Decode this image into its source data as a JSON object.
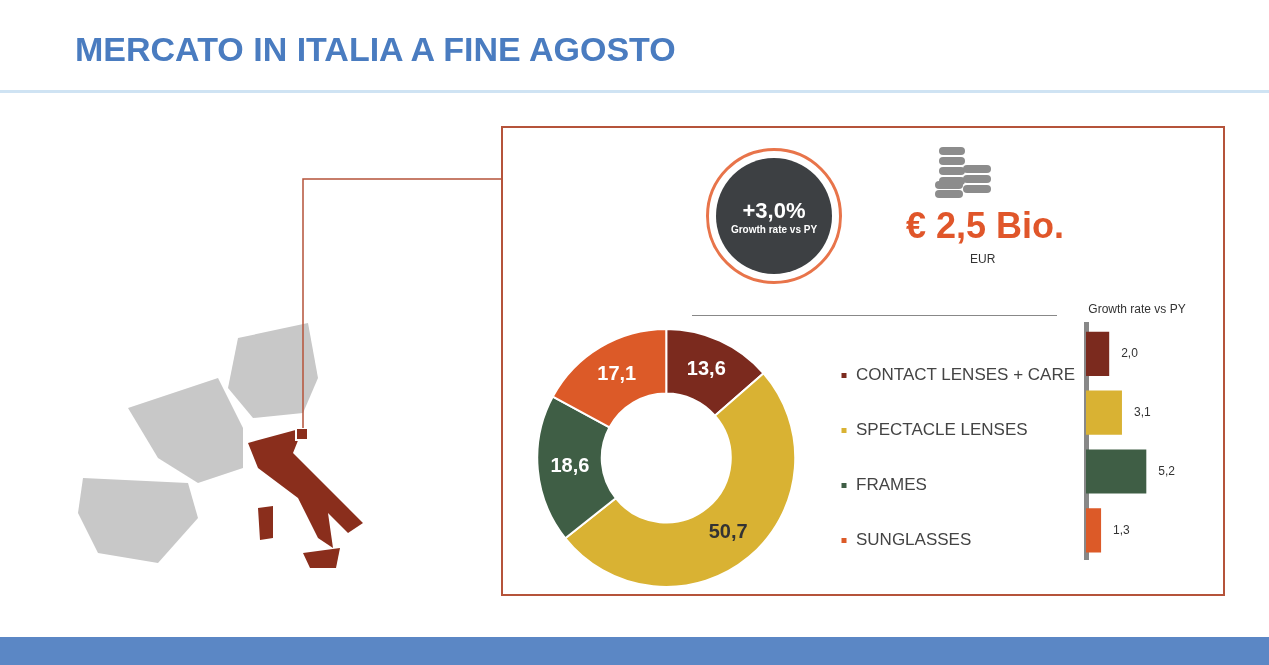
{
  "chart_data": [
    {
      "type": "other",
      "title": "MERCATO IN ITALIA A FINE AGOSTO",
      "annotations": [
        "+3,0%",
        "Growth rate vs PY",
        "€ 2,5 Bio.",
        "EUR"
      ]
    },
    {
      "type": "donut",
      "categories": [
        "CONTACT LENSES + CARE",
        "SPECTACLE LENSES",
        "FRAMES",
        "SUNGLASSES"
      ],
      "values": [
        13.6,
        50.7,
        18.6,
        17.1
      ],
      "colors": [
        "#7b2a1e",
        "#d9b233",
        "#3f5e45",
        "#dc5a28"
      ],
      "value_labels": [
        "13,6",
        "50,7",
        "18,6",
        "17,1"
      ],
      "legend": "right"
    },
    {
      "type": "bar",
      "orientation": "horizontal",
      "title": "Growth rate vs PY",
      "categories": [
        null,
        null,
        null,
        null
      ],
      "values": [
        2.0,
        3.1,
        5.2,
        1.3
      ],
      "colors": [
        "#7b2a1e",
        "#d9b233",
        "#3f5e45",
        "#dc5a28"
      ],
      "value_labels": [
        "2,0",
        "3,1",
        "5,2",
        "1,3"
      ]
    }
  ]
}
